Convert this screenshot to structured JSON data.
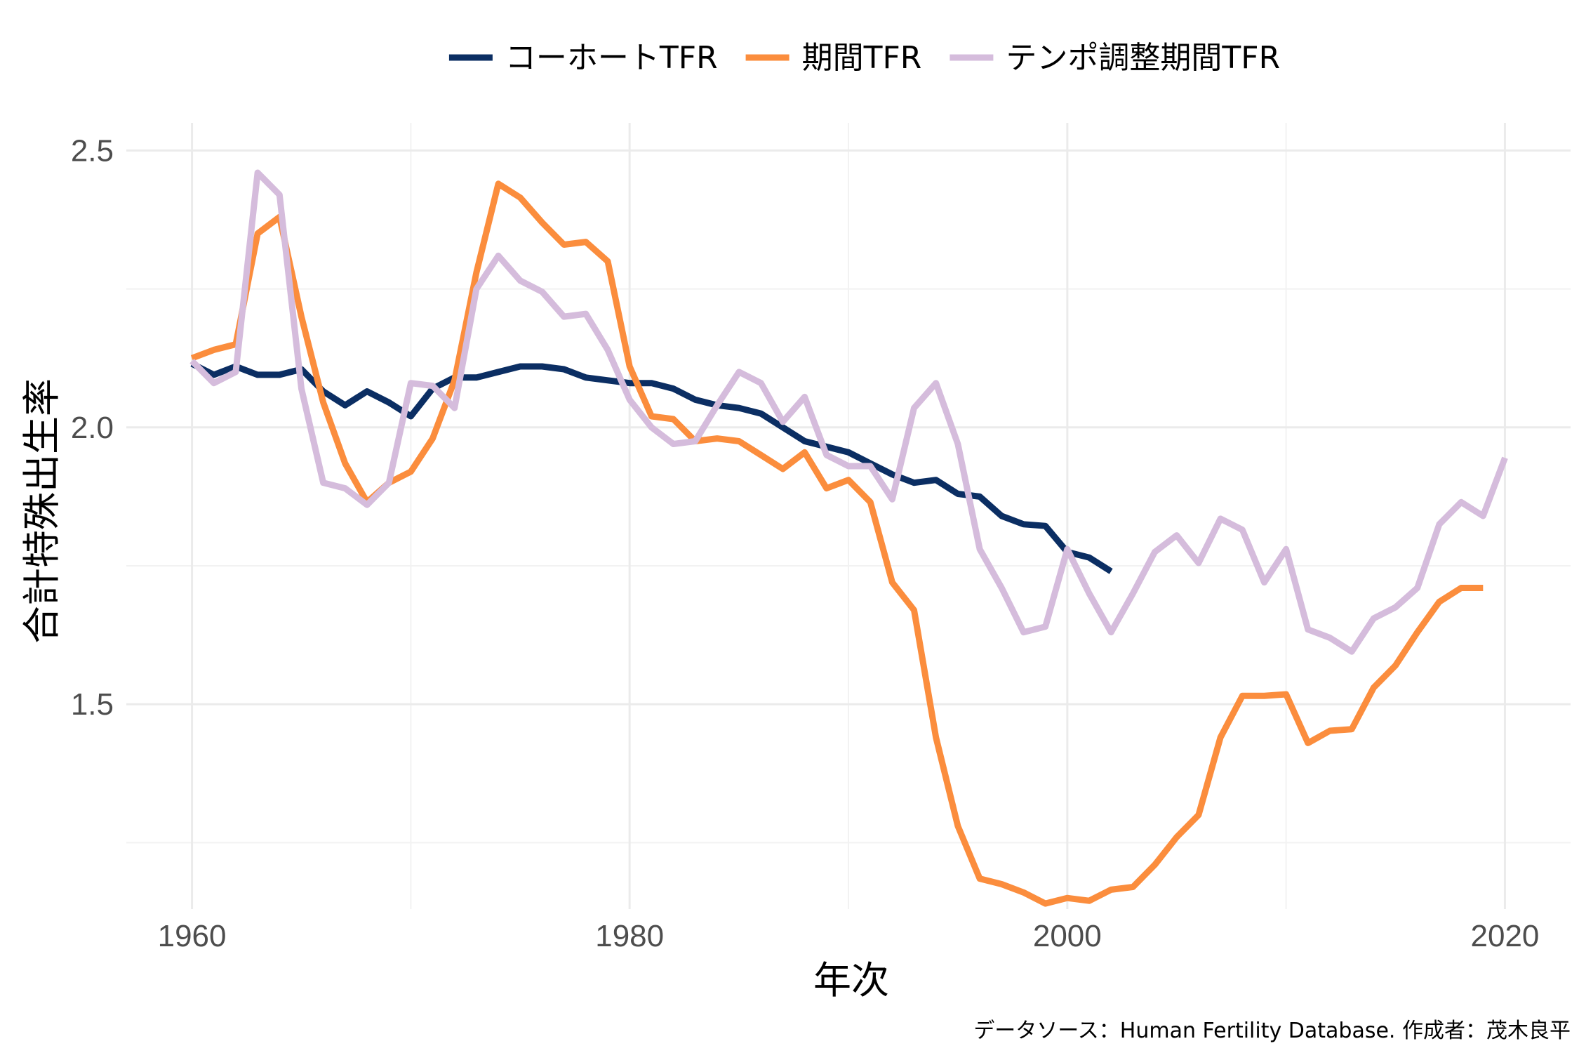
{
  "chart_data": {
    "type": "line",
    "xlabel": "年次",
    "ylabel": "合計特殊出生率",
    "caption": "データソース：Human Fertility Database. 作成者：茂木良平",
    "xlim": [
      1957,
      2023
    ],
    "ylim": [
      1.13,
      2.55
    ],
    "x_ticks": [
      1960,
      1980,
      2000,
      2020
    ],
    "y_ticks": [
      1.5,
      2.0,
      2.5
    ],
    "x_tick_labels": [
      "1960",
      "1980",
      "2000",
      "2020"
    ],
    "y_tick_labels": [
      "1.5",
      "2.0",
      "2.5"
    ],
    "grid": true,
    "legend_position": "top",
    "series": [
      {
        "name": "コーホートTFR",
        "color": "#0b2e63",
        "x": [
          1960,
          1961,
          1962,
          1963,
          1964,
          1965,
          1966,
          1967,
          1968,
          1969,
          1970,
          1971,
          1972,
          1973,
          1974,
          1975,
          1976,
          1977,
          1978,
          1979,
          1980,
          1981,
          1982,
          1983,
          1984,
          1985,
          1986,
          1987,
          1988,
          1989,
          1990,
          1991,
          1992,
          1993,
          1994,
          1995,
          1996,
          1997,
          1998,
          1999,
          2000,
          2001,
          2002
        ],
        "y": [
          2.115,
          2.095,
          2.11,
          2.095,
          2.095,
          2.105,
          2.065,
          2.04,
          2.065,
          2.045,
          2.02,
          2.07,
          2.09,
          2.09,
          2.1,
          2.11,
          2.11,
          2.105,
          2.09,
          2.085,
          2.08,
          2.08,
          2.07,
          2.05,
          2.04,
          2.035,
          2.025,
          2.0,
          1.975,
          1.965,
          1.955,
          1.935,
          1.915,
          1.9,
          1.905,
          1.88,
          1.875,
          1.84,
          1.825,
          1.822,
          1.775,
          1.765,
          1.74
        ]
      },
      {
        "name": "期間TFR",
        "color": "#fb8d3d",
        "x": [
          1960,
          1961,
          1962,
          1963,
          1964,
          1965,
          1966,
          1967,
          1968,
          1969,
          1970,
          1971,
          1972,
          1973,
          1974,
          1975,
          1976,
          1977,
          1978,
          1979,
          1980,
          1981,
          1982,
          1983,
          1984,
          1985,
          1986,
          1987,
          1988,
          1989,
          1990,
          1991,
          1992,
          1993,
          1994,
          1995,
          1996,
          1997,
          1998,
          1999,
          2000,
          2001,
          2002,
          2003,
          2004,
          2005,
          2006,
          2007,
          2008,
          2009,
          2010,
          2011,
          2012,
          2013,
          2014,
          2015,
          2016,
          2017,
          2018,
          2019
        ],
        "y": [
          2.125,
          2.14,
          2.15,
          2.35,
          2.38,
          2.2,
          2.045,
          1.935,
          1.865,
          1.9,
          1.92,
          1.98,
          2.085,
          2.28,
          2.44,
          2.415,
          2.37,
          2.33,
          2.335,
          2.3,
          2.11,
          2.02,
          2.015,
          1.975,
          1.98,
          1.975,
          1.95,
          1.925,
          1.955,
          1.89,
          1.905,
          1.865,
          1.72,
          1.67,
          1.44,
          1.28,
          1.185,
          1.175,
          1.16,
          1.14,
          1.15,
          1.145,
          1.165,
          1.17,
          1.21,
          1.26,
          1.3,
          1.44,
          1.515,
          1.515,
          1.518,
          1.43,
          1.452,
          1.455,
          1.53,
          1.57,
          1.63,
          1.685,
          1.71,
          1.71
        ]
      },
      {
        "name": "テンポ調整期間TFR",
        "color": "#d5bcdc",
        "x": [
          1960,
          1961,
          1962,
          1963,
          1964,
          1965,
          1966,
          1967,
          1968,
          1969,
          1970,
          1971,
          1972,
          1973,
          1974,
          1975,
          1976,
          1977,
          1978,
          1979,
          1980,
          1981,
          1982,
          1983,
          1984,
          1985,
          1986,
          1987,
          1988,
          1989,
          1990,
          1991,
          1992,
          1993,
          1994,
          1995,
          1996,
          1997,
          1998,
          1999,
          2000,
          2001,
          2002,
          2003,
          2004,
          2005,
          2006,
          2007,
          2008,
          2009,
          2010,
          2011,
          2012,
          2013,
          2014,
          2015,
          2016,
          2017,
          2018,
          2019,
          2020
        ],
        "y": [
          2.12,
          2.08,
          2.1,
          2.46,
          2.42,
          2.07,
          1.9,
          1.89,
          1.86,
          1.9,
          2.08,
          2.075,
          2.035,
          2.25,
          2.31,
          2.265,
          2.245,
          2.2,
          2.205,
          2.14,
          2.05,
          2.0,
          1.97,
          1.975,
          2.04,
          2.1,
          2.08,
          2.01,
          2.055,
          1.95,
          1.93,
          1.93,
          1.87,
          2.035,
          2.08,
          1.97,
          1.78,
          1.71,
          1.63,
          1.64,
          1.78,
          1.7,
          1.63,
          1.7,
          1.775,
          1.805,
          1.755,
          1.835,
          1.815,
          1.72,
          1.78,
          1.635,
          1.62,
          1.595,
          1.655,
          1.675,
          1.71,
          1.825,
          1.865,
          1.84,
          1.945
        ]
      }
    ]
  }
}
